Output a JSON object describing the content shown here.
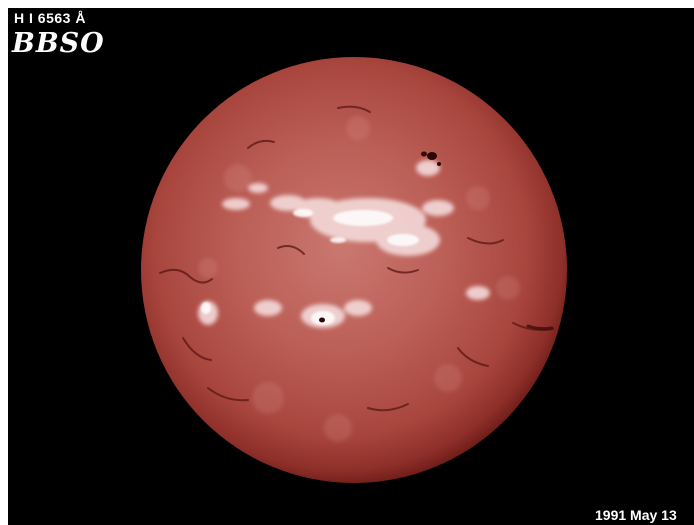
{
  "image": {
    "wavelength_label": "H I 6563 Å",
    "observatory_label": "BBSO",
    "date_label": "1991 May 13",
    "subject": "solar disk",
    "colors": {
      "background": "#000000",
      "disk_center": "#c06a62",
      "disk_mid": "#a9433c",
      "disk_limb": "#7a1f1b",
      "plage": "#f3d6d6",
      "filament": "#5a1512",
      "text": "#ffffff"
    }
  }
}
